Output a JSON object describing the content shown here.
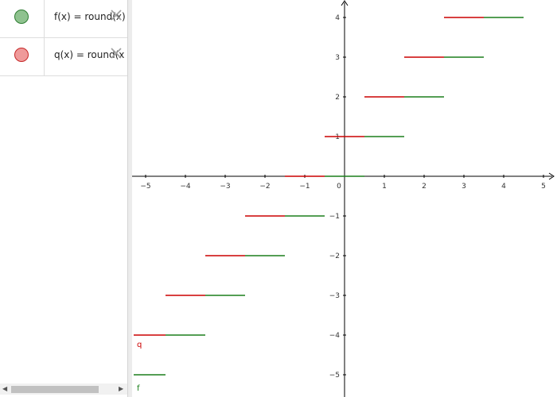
{
  "algebra": {
    "items": [
      {
        "formula": "f(x) = round(x)",
        "color": "#8fc28f",
        "border": "#2e7d32"
      },
      {
        "formula": "q(x) = round(x",
        "color": "#ef9a9a",
        "border": "#c62828"
      }
    ]
  },
  "graph": {
    "x_ticks": [
      "−5",
      "−4",
      "−3",
      "−2",
      "−1",
      "0",
      "1",
      "2",
      "3",
      "4",
      "5"
    ],
    "y_ticks": [
      "4",
      "3",
      "2",
      "1",
      "−1",
      "−2",
      "−3",
      "−4",
      "−5"
    ],
    "curve_labels": {
      "f": "f",
      "q": "q"
    },
    "colors": {
      "f": "#1b7f1b",
      "q": "#cc0000",
      "axis": "#000000"
    }
  },
  "chart_data": {
    "type": "line",
    "x_range": [
      -5.3,
      5.3
    ],
    "y_range": [
      -5.5,
      4.4
    ],
    "grid": false,
    "series": [
      {
        "name": "f",
        "segments": [
          {
            "x": [
              -5.3,
              -4.5
            ],
            "y": -5
          },
          {
            "x": [
              -4.5,
              -3.5
            ],
            "y": -4
          },
          {
            "x": [
              -3.5,
              -2.5
            ],
            "y": -3
          },
          {
            "x": [
              -2.5,
              -1.5
            ],
            "y": -2
          },
          {
            "x": [
              -1.5,
              -0.5
            ],
            "y": -1
          },
          {
            "x": [
              -0.5,
              0.5
            ],
            "y": 0
          },
          {
            "x": [
              0.5,
              1.5
            ],
            "y": 1
          },
          {
            "x": [
              1.5,
              2.5
            ],
            "y": 2
          },
          {
            "x": [
              2.5,
              3.5
            ],
            "y": 3
          },
          {
            "x": [
              3.5,
              4.5
            ],
            "y": 4
          }
        ]
      },
      {
        "name": "q",
        "segments": [
          {
            "x": [
              -5.3,
              -4.5
            ],
            "y": -4
          },
          {
            "x": [
              -4.5,
              -3.5
            ],
            "y": -3
          },
          {
            "x": [
              -3.5,
              -2.5
            ],
            "y": -2
          },
          {
            "x": [
              -2.5,
              -1.5
            ],
            "y": -1
          },
          {
            "x": [
              -1.5,
              -0.5
            ],
            "y": 0
          },
          {
            "x": [
              -0.5,
              0.5
            ],
            "y": 1
          },
          {
            "x": [
              0.5,
              1.5
            ],
            "y": 2
          },
          {
            "x": [
              1.5,
              2.5
            ],
            "y": 3
          },
          {
            "x": [
              2.5,
              3.5
            ],
            "y": 4
          }
        ]
      }
    ]
  }
}
